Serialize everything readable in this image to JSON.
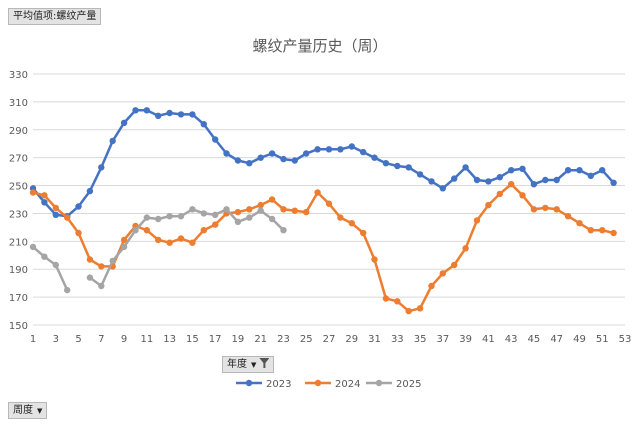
{
  "pivot": {
    "value_button": "平均值项:螺纹产量",
    "series_field_button": "年度",
    "axis_field_button": "周度"
  },
  "chart_data": {
    "type": "line",
    "title": "螺纹产量历史（周）",
    "xlabel": "",
    "ylabel": "",
    "x_ticks": [
      1,
      3,
      5,
      7,
      9,
      11,
      13,
      15,
      17,
      19,
      21,
      23,
      25,
      27,
      29,
      31,
      33,
      35,
      37,
      39,
      41,
      43,
      45,
      47,
      49,
      51,
      53
    ],
    "xlim": [
      1,
      53
    ],
    "ylim": [
      150,
      330
    ],
    "y_ticks": [
      150,
      170,
      190,
      210,
      230,
      250,
      270,
      290,
      310,
      330
    ],
    "grid": true,
    "legend": "bottom",
    "series": [
      {
        "name": "2023",
        "color": "#4472C4",
        "x": [
          1,
          2,
          3,
          4,
          5,
          6,
          7,
          8,
          9,
          10,
          11,
          12,
          13,
          14,
          15,
          16,
          17,
          18,
          19,
          20,
          21,
          22,
          23,
          24,
          25,
          26,
          27,
          28,
          29,
          30,
          31,
          32,
          33,
          34,
          35,
          36,
          37,
          38,
          39,
          40,
          41,
          42,
          43,
          44,
          45,
          46,
          47,
          48,
          49,
          50,
          51,
          52
        ],
        "values": [
          248,
          238,
          229,
          228,
          235,
          246,
          263,
          282,
          295,
          304,
          304,
          300,
          302,
          301,
          301,
          294,
          283,
          273,
          268,
          266,
          270,
          273,
          269,
          268,
          273,
          276,
          276,
          276,
          278,
          274,
          270,
          266,
          264,
          263,
          258,
          253,
          248,
          255,
          263,
          254,
          253,
          256,
          261,
          262,
          251,
          254,
          254,
          261,
          261,
          257,
          261,
          252
        ]
      },
      {
        "name": "2024",
        "color": "#ED7D31",
        "x": [
          1,
          2,
          3,
          4,
          5,
          6,
          7,
          8,
          9,
          10,
          11,
          12,
          13,
          14,
          15,
          16,
          17,
          18,
          19,
          20,
          21,
          22,
          23,
          24,
          25,
          26,
          27,
          28,
          29,
          30,
          31,
          32,
          33,
          34,
          35,
          36,
          37,
          38,
          39,
          40,
          41,
          42,
          43,
          44,
          45,
          46,
          47,
          48,
          49,
          50,
          51,
          52
        ],
        "values": [
          245,
          243,
          234,
          227,
          216,
          197,
          192,
          192,
          211,
          221,
          218,
          211,
          209,
          212,
          209,
          218,
          222,
          230,
          231,
          233,
          236,
          240,
          233,
          232,
          231,
          245,
          237,
          227,
          223,
          216,
          197,
          169,
          167,
          160,
          162,
          178,
          187,
          193,
          205,
          225,
          236,
          244,
          251,
          243,
          233,
          234,
          233,
          228,
          223,
          218,
          218,
          216
        ]
      },
      {
        "name": "2025",
        "color": "#A5A5A5",
        "x": [
          1,
          2,
          3,
          4,
          null,
          6,
          7,
          8,
          9,
          10,
          11,
          12,
          13,
          14,
          15,
          16,
          17,
          18,
          19,
          20,
          21,
          22,
          23
        ],
        "values": [
          206,
          199,
          193,
          175,
          null,
          184,
          178,
          196,
          206,
          218,
          227,
          226,
          228,
          228,
          233,
          230,
          229,
          233,
          224,
          227,
          232,
          226,
          218
        ]
      }
    ]
  }
}
